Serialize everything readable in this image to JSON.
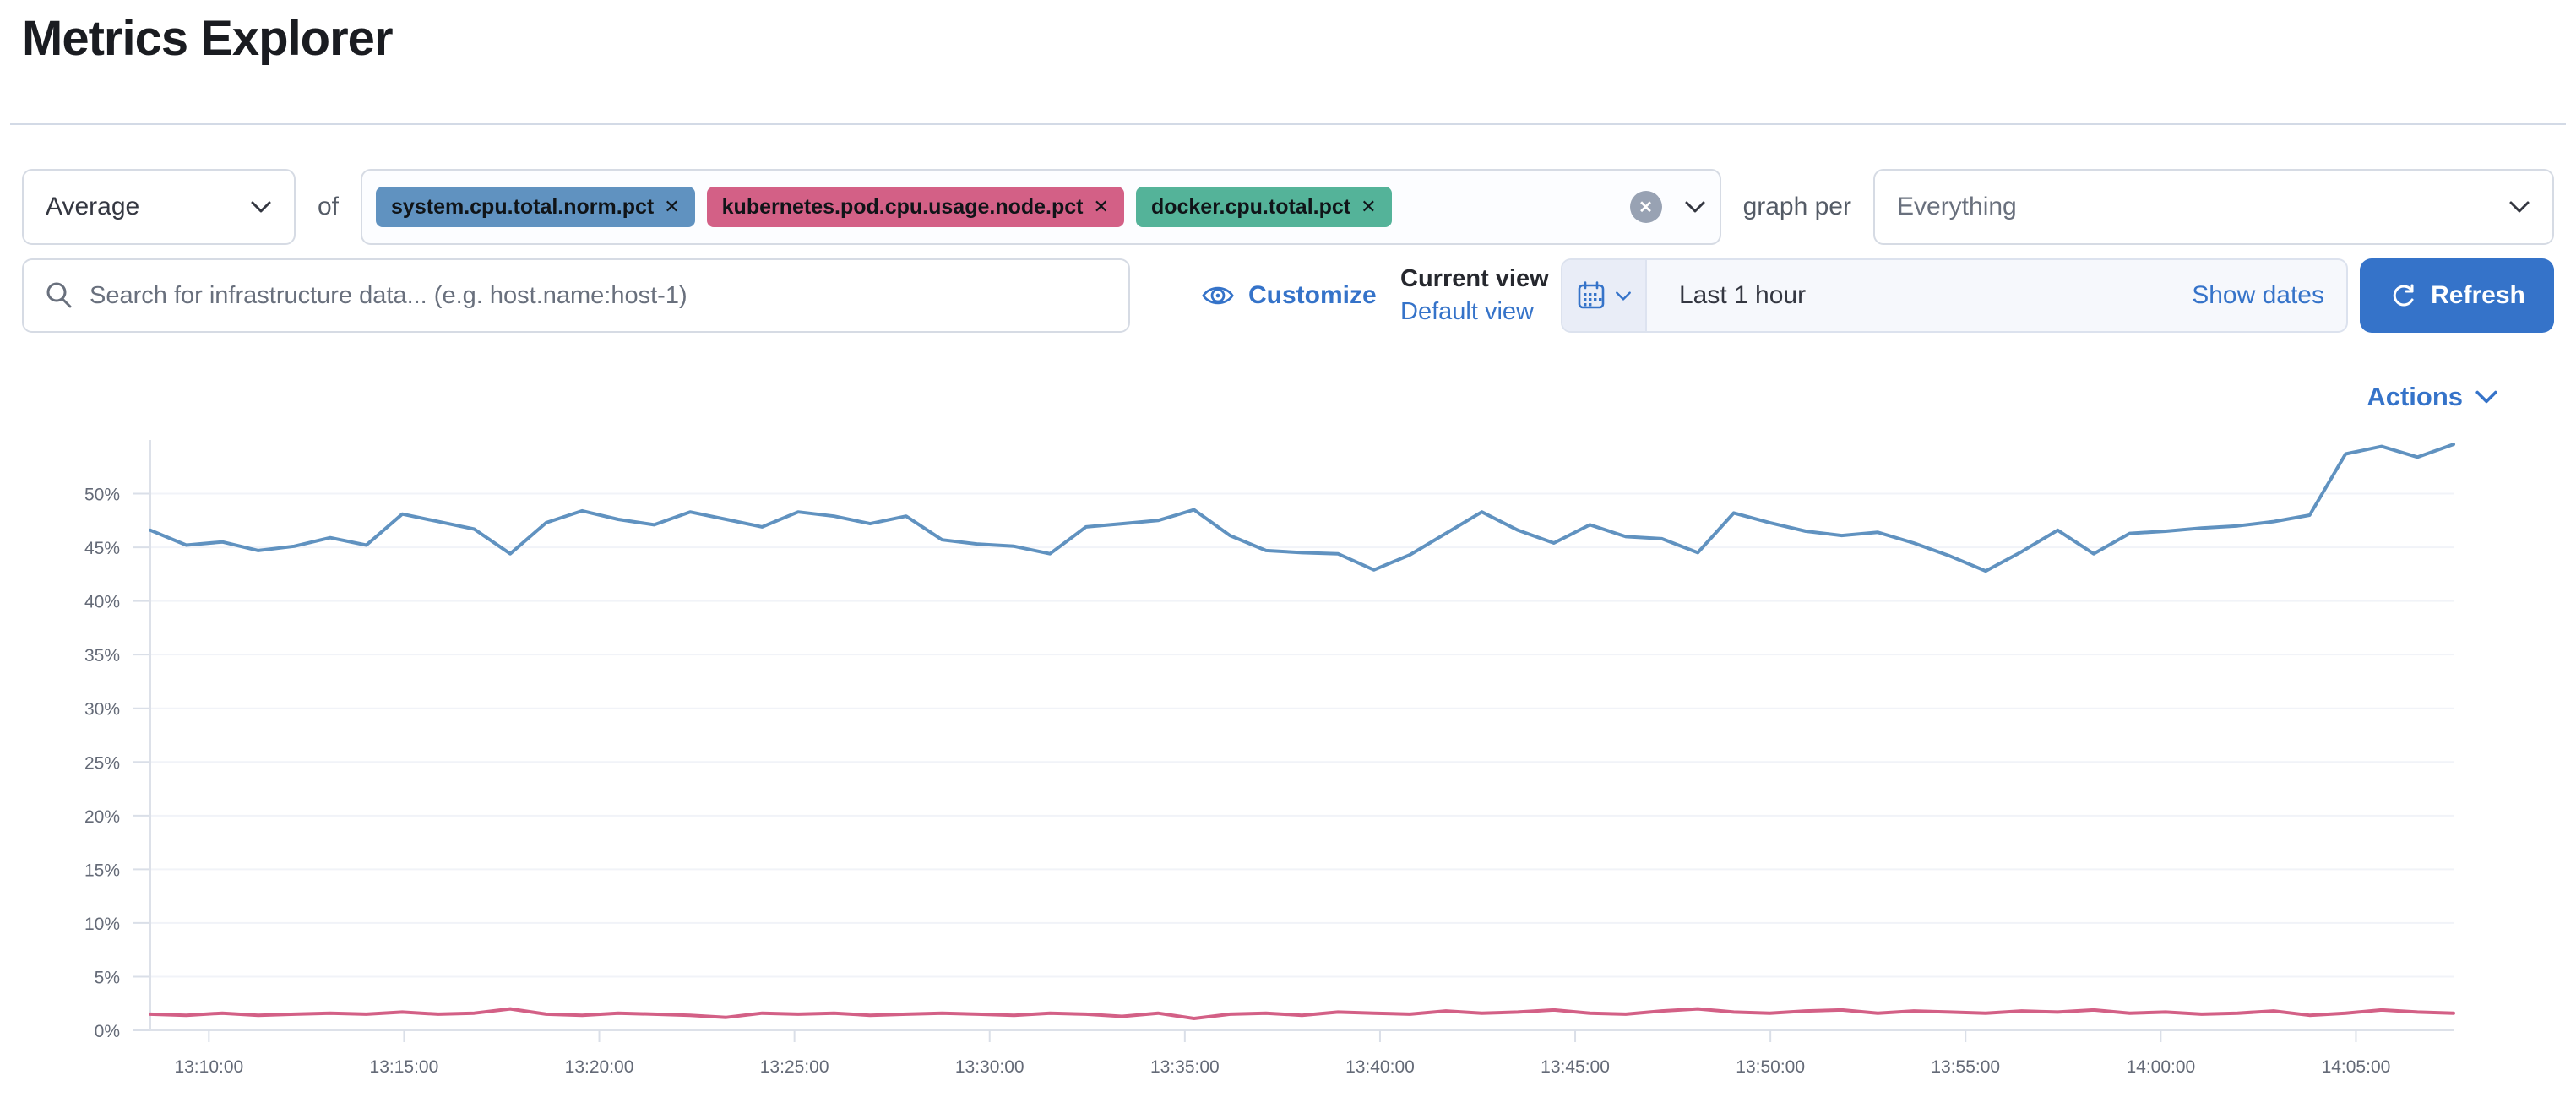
{
  "page": {
    "title": "Metrics Explorer"
  },
  "toolbar": {
    "aggregation_value": "Average",
    "of_label": "of",
    "metrics": [
      {
        "label": "system.cpu.total.norm.pct",
        "color": "#6092C0"
      },
      {
        "label": "kubernetes.pod.cpu.usage.node.pct",
        "color": "#D36086"
      },
      {
        "label": "docker.cpu.total.pct",
        "color": "#54B399"
      }
    ],
    "remove_icon": "✕",
    "clear_all_icon": "✕",
    "graph_per_label": "graph per",
    "group_by_value": "Everything"
  },
  "search": {
    "placeholder": "Search for infrastructure data... (e.g. host.name:host-1)"
  },
  "view_controls": {
    "customize_label": "Customize",
    "current_view_label": "Current view",
    "default_view_label": "Default view"
  },
  "time_picker": {
    "range_label": "Last 1 hour",
    "show_dates_label": "Show dates",
    "refresh_label": "Refresh"
  },
  "actions": {
    "label": "Actions"
  },
  "colors": {
    "accent_blue": "#3573c9",
    "line_blue": "#6092C0",
    "line_pink": "#D36086",
    "badge_green": "#54B399",
    "axis_text": "#646a77"
  },
  "chart_data": {
    "type": "line",
    "title": "",
    "xlabel": "",
    "ylabel": "",
    "grid": "horizontal",
    "legend": "none",
    "x_ticks": [
      "13:10:00",
      "13:15:00",
      "13:20:00",
      "13:25:00",
      "13:30:00",
      "13:35:00",
      "13:40:00",
      "13:45:00",
      "13:50:00",
      "13:55:00",
      "14:00:00",
      "14:05:00"
    ],
    "x_first_tick_minute": 1.5,
    "x_tick_step_minutes": 5,
    "x_domain_minutes": 59,
    "y_tick_labels": [
      "0%",
      "5%",
      "10%",
      "15%",
      "20%",
      "25%",
      "30%",
      "35%",
      "40%",
      "45%",
      "50%"
    ],
    "y_tick_values": [
      0,
      5,
      10,
      15,
      20,
      25,
      30,
      35,
      40,
      45,
      50
    ],
    "ylim": [
      0,
      55
    ],
    "series": [
      {
        "name": "system.cpu.total.norm.pct",
        "color": "#6092C0",
        "values": [
          46.6,
          45.2,
          45.5,
          44.7,
          45.1,
          45.9,
          45.2,
          48.1,
          47.4,
          46.7,
          44.4,
          47.3,
          48.4,
          47.6,
          47.1,
          48.3,
          47.6,
          46.9,
          48.3,
          47.9,
          47.2,
          47.9,
          45.7,
          45.3,
          45.1,
          44.4,
          46.9,
          47.2,
          47.5,
          48.5,
          46.1,
          44.7,
          44.5,
          44.4,
          42.9,
          44.3,
          46.3,
          48.3,
          46.6,
          45.4,
          47.1,
          46.0,
          45.8,
          44.5,
          48.2,
          47.3,
          46.5,
          46.1,
          46.4,
          45.4,
          44.2,
          42.8,
          44.6,
          46.6,
          44.4,
          46.3,
          46.5,
          46.8,
          47.0,
          47.4,
          48.0,
          53.7,
          54.4,
          53.4,
          54.6
        ]
      },
      {
        "name": "kubernetes.pod.cpu.usage.node.pct",
        "color": "#D36086",
        "values": [
          1.5,
          1.4,
          1.6,
          1.4,
          1.5,
          1.6,
          1.5,
          1.7,
          1.5,
          1.6,
          2.0,
          1.5,
          1.4,
          1.6,
          1.5,
          1.4,
          1.2,
          1.6,
          1.5,
          1.6,
          1.4,
          1.5,
          1.6,
          1.5,
          1.4,
          1.6,
          1.5,
          1.3,
          1.6,
          1.1,
          1.5,
          1.6,
          1.4,
          1.7,
          1.6,
          1.5,
          1.8,
          1.6,
          1.7,
          1.9,
          1.6,
          1.5,
          1.8,
          2.0,
          1.7,
          1.6,
          1.8,
          1.9,
          1.6,
          1.8,
          1.7,
          1.6,
          1.8,
          1.7,
          1.9,
          1.6,
          1.7,
          1.5,
          1.6,
          1.8,
          1.4,
          1.6,
          1.9,
          1.7,
          1.6
        ]
      }
    ]
  }
}
